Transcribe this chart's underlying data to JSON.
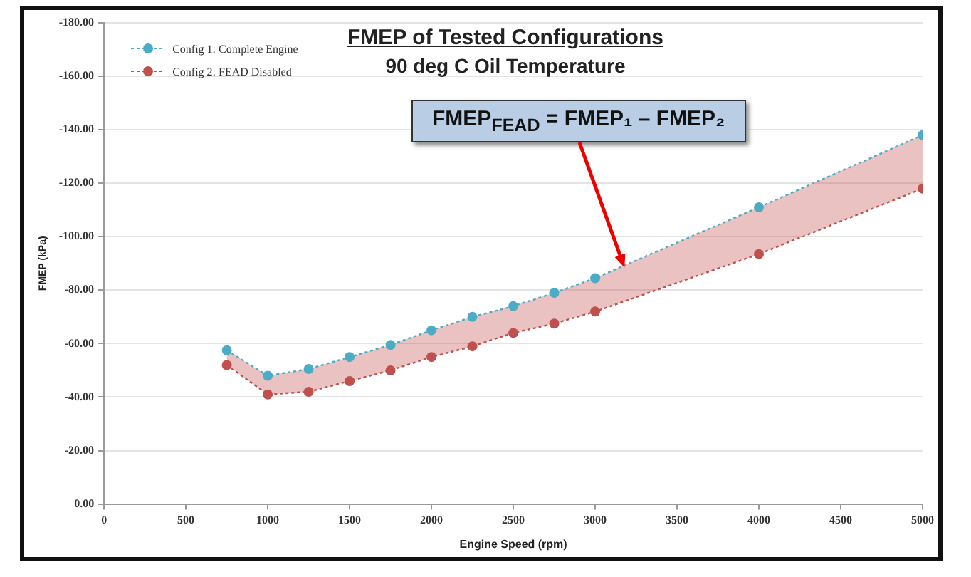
{
  "chart_data": {
    "type": "line",
    "title": "FMEP of Tested Configurations",
    "subtitle": "90 deg C Oil Temperature",
    "xlabel": "Engine Speed (rpm)",
    "ylabel": "FMEP (kPa)",
    "x": [
      750,
      1000,
      1250,
      1500,
      1750,
      2000,
      2250,
      2500,
      2750,
      3000,
      4000,
      5000
    ],
    "series": [
      {
        "name": "Config 1: Complete Engine",
        "color": "#4bacc6",
        "values": [
          -57.5,
          -48,
          -50.5,
          -55,
          -59.5,
          -65,
          -70,
          -74,
          -79,
          -84.5,
          -111,
          -138
        ],
        "upper": [
          -57.5,
          -48,
          -50.5,
          -55,
          -59.5,
          -65,
          -70,
          -74,
          -79,
          -84.5,
          -111,
          -138
        ],
        "lower": [
          -52,
          -41,
          -42,
          -46,
          -50,
          -55,
          -59,
          -64,
          -67.5,
          -72,
          -93.5,
          -118
        ]
      },
      {
        "name": "Config 2: FEAD Disabled",
        "color": "#c0504d",
        "values": [
          -52,
          -41,
          -42,
          -46,
          -50,
          -55,
          -59,
          -64,
          -67.5,
          -72,
          -93.5,
          -118
        ]
      }
    ],
    "xlim": [
      0,
      5000
    ],
    "xticks": [
      0,
      500,
      1000,
      1500,
      2000,
      2500,
      3000,
      3500,
      4000,
      4500,
      5000
    ],
    "ylim": [
      0,
      -180
    ],
    "yticks": [
      {
        "value": 0,
        "label": "0.00"
      },
      {
        "value": -20,
        "label": "-20.00"
      },
      {
        "value": -40,
        "label": "-40.00"
      },
      {
        "value": -60,
        "label": "-60.00"
      },
      {
        "value": -80,
        "label": "-80.00"
      },
      {
        "value": -100,
        "label": "-100.00"
      },
      {
        "value": -120,
        "label": "-120.00"
      },
      {
        "value": -140,
        "label": "-140.00"
      },
      {
        "value": -160,
        "label": "-160.00"
      },
      {
        "value": -180,
        "label": "-180.00"
      }
    ],
    "annotations": [
      "FMEP$_{FEAD}$ = FMEP₁ – FMEP₂"
    ],
    "grid": "y",
    "legend": "top left",
    "marker": "circle",
    "line_style": "dotted"
  }
}
